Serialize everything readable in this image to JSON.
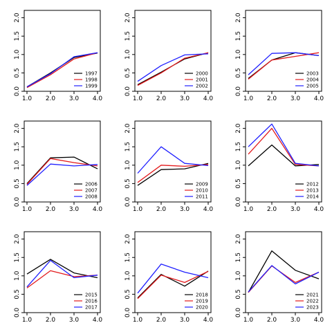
{
  "chart_data": [
    {
      "type": "line",
      "x": [
        1.0,
        2.0,
        3.0,
        4.0
      ],
      "xticks": [
        "1.0",
        "2.0",
        "3.0",
        "4.0"
      ],
      "ylim": [
        0,
        2.2
      ],
      "yticks": [
        "0.0",
        "0.5",
        "1.0",
        "1.5",
        "2.0"
      ],
      "grid": false,
      "legend_position": "bottom-right",
      "series": [
        {
          "name": "1997",
          "color": "#000000",
          "values": [
            0.12,
            0.5,
            0.92,
            1.04
          ]
        },
        {
          "name": "1998",
          "color": "#e31a1c",
          "values": [
            0.1,
            0.45,
            0.88,
            1.05
          ]
        },
        {
          "name": "1999",
          "color": "#1f1fff",
          "values": [
            0.12,
            0.48,
            0.94,
            1.05
          ]
        }
      ]
    },
    {
      "type": "line",
      "x": [
        1.0,
        2.0,
        3.0,
        4.0
      ],
      "xticks": [
        "1.0",
        "2.0",
        "3.0",
        "4.0"
      ],
      "ylim": [
        0,
        2.2
      ],
      "yticks": [
        "0.0",
        "0.5",
        "1.0",
        "1.5",
        "2.0"
      ],
      "grid": false,
      "legend_position": "bottom-right",
      "series": [
        {
          "name": "2000",
          "color": "#000000",
          "values": [
            0.18,
            0.52,
            0.88,
            1.05
          ]
        },
        {
          "name": "2001",
          "color": "#e31a1c",
          "values": [
            0.16,
            0.5,
            0.9,
            1.05
          ]
        },
        {
          "name": "2002",
          "color": "#1f1fff",
          "values": [
            0.27,
            0.7,
            0.99,
            1.02
          ]
        }
      ]
    },
    {
      "type": "line",
      "x": [
        1.0,
        2.0,
        3.0,
        4.0
      ],
      "xticks": [
        "1.0",
        "2.0",
        "3.0",
        "4.0"
      ],
      "ylim": [
        0,
        2.2
      ],
      "yticks": [
        "0.0",
        "0.5",
        "1.0",
        "1.5",
        "2.0"
      ],
      "grid": false,
      "legend_position": "bottom-right",
      "series": [
        {
          "name": "2003",
          "color": "#000000",
          "values": [
            0.35,
            0.85,
            1.05,
            0.97
          ]
        },
        {
          "name": "2004",
          "color": "#e31a1c",
          "values": [
            0.33,
            0.85,
            0.95,
            1.05
          ]
        },
        {
          "name": "2005",
          "color": "#1f1fff",
          "values": [
            0.45,
            1.03,
            1.05,
            0.97
          ]
        }
      ]
    },
    {
      "type": "line",
      "x": [
        1.0,
        2.0,
        3.0,
        4.0
      ],
      "xticks": [
        "1.0",
        "2.0",
        "3.0",
        "4.0"
      ],
      "ylim": [
        0,
        2.2
      ],
      "yticks": [
        "0.0",
        "0.5",
        "1.0",
        "1.5",
        "2.0"
      ],
      "grid": false,
      "legend_position": "bottom-right",
      "series": [
        {
          "name": "2006",
          "color": "#000000",
          "values": [
            0.5,
            1.2,
            1.22,
            0.9
          ]
        },
        {
          "name": "2007",
          "color": "#e31a1c",
          "values": [
            0.48,
            1.18,
            1.07,
            0.98
          ]
        },
        {
          "name": "2008",
          "color": "#1f1fff",
          "values": [
            0.45,
            1.03,
            0.98,
            1.02
          ]
        }
      ]
    },
    {
      "type": "line",
      "x": [
        1.0,
        2.0,
        3.0,
        4.0
      ],
      "xticks": [
        "1.0",
        "2.0",
        "3.0",
        "4.0"
      ],
      "ylim": [
        0,
        2.2
      ],
      "yticks": [
        "0.0",
        "0.5",
        "1.0",
        "1.5",
        "2.0"
      ],
      "grid": false,
      "legend_position": "bottom-right",
      "series": [
        {
          "name": "2009",
          "color": "#000000",
          "values": [
            0.45,
            0.88,
            0.9,
            1.05
          ]
        },
        {
          "name": "2010",
          "color": "#e31a1c",
          "values": [
            0.53,
            1.0,
            0.97,
            1.02
          ]
        },
        {
          "name": "2011",
          "color": "#1f1fff",
          "values": [
            0.78,
            1.5,
            1.05,
            0.99
          ]
        }
      ]
    },
    {
      "type": "line",
      "x": [
        1.0,
        2.0,
        3.0,
        4.0
      ],
      "xticks": [
        "1.0",
        "2.0",
        "3.0",
        "4.0"
      ],
      "ylim": [
        0,
        2.2
      ],
      "yticks": [
        "0.0",
        "0.5",
        "1.0",
        "1.5",
        "2.0"
      ],
      "grid": false,
      "legend_position": "bottom-right",
      "series": [
        {
          "name": "2012",
          "color": "#000000",
          "values": [
            0.98,
            1.55,
            0.98,
            1.02
          ]
        },
        {
          "name": "2013",
          "color": "#e31a1c",
          "values": [
            1.3,
            2.0,
            1.02,
            0.98
          ]
        },
        {
          "name": "2014",
          "color": "#1f1fff",
          "values": [
            1.5,
            2.12,
            1.05,
            0.98
          ]
        }
      ]
    },
    {
      "type": "line",
      "x": [
        1.0,
        2.0,
        3.0,
        4.0
      ],
      "xticks": [
        "1.0",
        "2.0",
        "3.0",
        "4.0"
      ],
      "ylim": [
        0,
        2.2
      ],
      "yticks": [
        "0.0",
        "0.5",
        "1.0",
        "1.5",
        "2.0"
      ],
      "grid": false,
      "legend_position": "bottom-right",
      "series": [
        {
          "name": "2015",
          "color": "#000000",
          "values": [
            1.05,
            1.45,
            1.08,
            0.95
          ]
        },
        {
          "name": "2016",
          "color": "#e31a1c",
          "values": [
            0.67,
            1.14,
            0.98,
            1.02
          ]
        },
        {
          "name": "2017",
          "color": "#1f1fff",
          "values": [
            0.7,
            1.42,
            0.95,
            1.02
          ]
        }
      ]
    },
    {
      "type": "line",
      "x": [
        1.0,
        2.0,
        3.0,
        4.0
      ],
      "xticks": [
        "1.0",
        "2.0",
        "3.0",
        "4.0"
      ],
      "ylim": [
        0,
        2.2
      ],
      "yticks": [
        "0.0",
        "0.5",
        "1.0",
        "1.5",
        "2.0"
      ],
      "grid": false,
      "legend_position": "bottom-right",
      "series": [
        {
          "name": "2018",
          "color": "#000000",
          "values": [
            0.4,
            1.04,
            0.72,
            1.13
          ]
        },
        {
          "name": "2019",
          "color": "#e31a1c",
          "values": [
            0.38,
            1.02,
            0.82,
            1.12
          ]
        },
        {
          "name": "2020",
          "color": "#1f1fff",
          "values": [
            0.53,
            1.32,
            1.1,
            0.95
          ]
        }
      ]
    },
    {
      "type": "line",
      "x": [
        1.0,
        2.0,
        3.0,
        4.0
      ],
      "xticks": [
        "1.0",
        "2.0",
        "3.0",
        "4.0"
      ],
      "ylim": [
        0,
        2.2
      ],
      "yticks": [
        "0.0",
        "0.5",
        "1.0",
        "1.5",
        "2.0"
      ],
      "grid": false,
      "legend_position": "bottom-right",
      "series": [
        {
          "name": "2021",
          "color": "#000000",
          "values": [
            0.55,
            1.68,
            1.15,
            0.92
          ]
        },
        {
          "name": "2022",
          "color": "#e31a1c",
          "values": [
            0.55,
            1.27,
            0.82,
            1.1
          ]
        },
        {
          "name": "2023",
          "color": "#1f1fff",
          "values": [
            0.56,
            1.28,
            0.78,
            1.1
          ]
        }
      ]
    }
  ]
}
